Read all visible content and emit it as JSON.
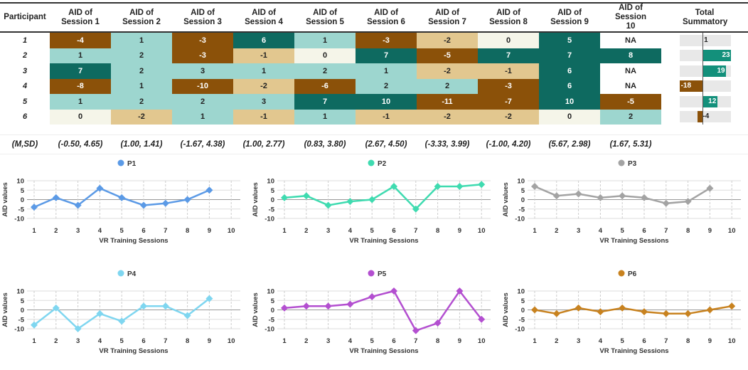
{
  "table": {
    "headers": [
      "Participant",
      "AID of Session 1",
      "AID of Session 2",
      "AID of Session 3",
      "AID of Session 4",
      "AID of Session 5",
      "AID of Session 6",
      "AID of Session 7",
      "AID of Session 8",
      "AID of Session 9",
      "AID of Session 10",
      "Total Summatory"
    ],
    "rows": [
      {
        "p": "1",
        "v": [
          "-4",
          "1",
          "-3",
          "6",
          "1",
          "-3",
          "-2",
          "0",
          "5",
          "NA"
        ],
        "total": 1
      },
      {
        "p": "2",
        "v": [
          "1",
          "2",
          "-3",
          "-1",
          "0",
          "7",
          "-5",
          "7",
          "7",
          "8"
        ],
        "total": 23
      },
      {
        "p": "3",
        "v": [
          "7",
          "2",
          "3",
          "1",
          "2",
          "1",
          "-2",
          "-1",
          "6",
          "NA"
        ],
        "total": 19
      },
      {
        "p": "4",
        "v": [
          "-8",
          "1",
          "-10",
          "-2",
          "-6",
          "2",
          "2",
          "-3",
          "6",
          "NA"
        ],
        "total": -18
      },
      {
        "p": "5",
        "v": [
          "1",
          "2",
          "2",
          "3",
          "7",
          "10",
          "-11",
          "-7",
          "10",
          "-5"
        ],
        "total": 12
      },
      {
        "p": "6",
        "v": [
          "0",
          "-2",
          "1",
          "-1",
          "1",
          "-1",
          "-2",
          "-2",
          "0",
          "2"
        ],
        "total": -4
      }
    ],
    "msd_label": "(M,SD)",
    "msd": [
      "(-0.50, 4.65)",
      "(1.00, 1.41)",
      "(-1.67, 4.38)",
      "(1.00, 2.77)",
      "(0.83, 3.80)",
      "(2.67, 4.50)",
      "(-3.33, 3.99)",
      "(-1.00, 4.20)",
      "(5.67, 2.98)",
      "(1.67, 5.31)"
    ],
    "colors": {
      "strong_neg": "#8b5109",
      "neg": "#e2c78f",
      "zero": "#f5f5e9",
      "pos": "#9dd6cf",
      "strong_pos": "#0e6a60",
      "na": "#ffffff",
      "bar_pos": "#13907b",
      "bar_neg": "#8b5109"
    }
  },
  "chart_data": [
    {
      "type": "line",
      "title": "P1",
      "color": "#5b9ae6",
      "x": [
        1,
        2,
        3,
        4,
        5,
        6,
        7,
        8,
        9,
        10
      ],
      "values": [
        -4,
        1,
        -3,
        6,
        1,
        -3,
        -2,
        0,
        5,
        null
      ],
      "xlabel": "VR Training Sessions",
      "ylabel": "AID values",
      "ylim": [
        -10,
        10
      ],
      "yticks": [
        10,
        5,
        0,
        -5,
        -10
      ]
    },
    {
      "type": "line",
      "title": "P2",
      "color": "#3fdbb0",
      "x": [
        1,
        2,
        3,
        4,
        5,
        6,
        7,
        8,
        9,
        10
      ],
      "values": [
        1,
        2,
        -3,
        -1,
        0,
        7,
        -5,
        7,
        7,
        8
      ],
      "xlabel": "VR Training Sessions",
      "ylabel": "AID values",
      "ylim": [
        -10,
        10
      ],
      "yticks": [
        10,
        5,
        0,
        -5,
        -10
      ]
    },
    {
      "type": "line",
      "title": "P3",
      "color": "#a3a3a3",
      "x": [
        1,
        2,
        3,
        4,
        5,
        6,
        7,
        8,
        9,
        10
      ],
      "values": [
        7,
        2,
        3,
        1,
        2,
        1,
        -2,
        -1,
        6,
        null
      ],
      "xlabel": "VR Training Sessions",
      "ylabel": "AID values",
      "ylim": [
        -10,
        10
      ],
      "yticks": [
        10,
        5,
        0,
        -5,
        -10
      ]
    },
    {
      "type": "line",
      "title": "P4",
      "color": "#7fd6f0",
      "x": [
        1,
        2,
        3,
        4,
        5,
        6,
        7,
        8,
        9,
        10
      ],
      "values": [
        -8,
        1,
        -10,
        -2,
        -6,
        2,
        2,
        -3,
        6,
        null
      ],
      "xlabel": "VR Training Sessions",
      "ylabel": "AID values",
      "ylim": [
        -10,
        10
      ],
      "yticks": [
        10,
        5,
        0,
        -5,
        -10
      ]
    },
    {
      "type": "line",
      "title": "P5",
      "color": "#b34fd0",
      "x": [
        1,
        2,
        3,
        4,
        5,
        6,
        7,
        8,
        9,
        10
      ],
      "values": [
        1,
        2,
        2,
        3,
        7,
        10,
        -11,
        -7,
        10,
        -5
      ],
      "xlabel": "VR Training Sessions",
      "ylabel": "AID values",
      "ylim": [
        -10,
        10
      ],
      "yticks": [
        10,
        5,
        0,
        -5,
        -10
      ]
    },
    {
      "type": "line",
      "title": "P6",
      "color": "#c8821f",
      "x": [
        1,
        2,
        3,
        4,
        5,
        6,
        7,
        8,
        9,
        10
      ],
      "values": [
        0,
        -2,
        1,
        -1,
        1,
        -1,
        -2,
        -2,
        0,
        2
      ],
      "xlabel": "VR Training Sessions",
      "ylabel": "AID values",
      "ylim": [
        -10,
        10
      ],
      "yticks": [
        10,
        5,
        0,
        -5,
        -10
      ]
    }
  ]
}
